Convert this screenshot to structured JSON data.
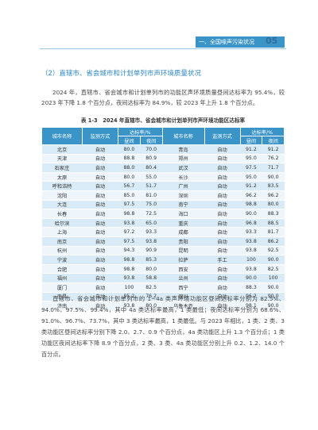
{
  "header": {
    "section": "一、全国噪声污染状况",
    "page_number": "05"
  },
  "section_title": "（2）直辖市、省会城市和计划单列市声环境质量状况",
  "paragraph1": "2024 年，直辖市、省会城市和计划单列市的功能区声环境质量昼间达标率为 95.4%，较 2023 年下降 1.8 个百分点，夜间达标率为 84.9%，较 2023 年上升 1.8 个百分点。",
  "table_caption": "表 1-3　2024 年直辖市、省会城市和计划单列市声环境功能区达标率",
  "table": {
    "col_city": "城市名称",
    "col_method": "监测方式",
    "col_rate": "达标率/%",
    "col_day": "昼间",
    "col_night": "夜间",
    "rows": [
      {
        "c1": "北京",
        "m1": "自动",
        "d1": "80.0",
        "n1": "70.0",
        "c2": "青岛",
        "m2": "自动",
        "d2": "91.2",
        "n2": "91.2"
      },
      {
        "c1": "天津",
        "m1": "自动",
        "d1": "88.8",
        "n1": "80.9",
        "c2": "郑州",
        "m2": "自动",
        "d2": "95.0",
        "n2": "76.2"
      },
      {
        "c1": "石家庄",
        "m1": "自动",
        "d1": "88.0",
        "n1": "80.4",
        "c2": "武汉",
        "m2": "自动",
        "d2": "97.5",
        "n2": "71.7"
      },
      {
        "c1": "太原",
        "m1": "自动",
        "d1": "80.0",
        "n1": "55.0",
        "c2": "长沙",
        "m2": "自动",
        "d2": "95.0",
        "n2": "90.0"
      },
      {
        "c1": "呼和浩特",
        "m1": "自动",
        "d1": "56.7",
        "n1": "51.7",
        "c2": "广州",
        "m2": "自动",
        "d2": "91.2",
        "n2": "83.5"
      },
      {
        "c1": "沈阳",
        "m1": "自动",
        "d1": "85.0",
        "n1": "81.0",
        "c2": "深圳",
        "m2": "自动",
        "d2": "96.2",
        "n2": "96.2"
      },
      {
        "c1": "大连",
        "m1": "自动",
        "d1": "97.5",
        "n1": "75.0",
        "c2": "南宁",
        "m2": "自动",
        "d2": "98.8",
        "n2": "80.0"
      },
      {
        "c1": "长春",
        "m1": "自动",
        "d1": "98.8",
        "n1": "72.5",
        "c2": "海口",
        "m2": "自动",
        "d2": "90.0",
        "n2": "88.3"
      },
      {
        "c1": "哈尔滨",
        "m1": "自动",
        "d1": "93.8",
        "n1": "65.0",
        "c2": "重庆",
        "m2": "自动",
        "d2": "96.8",
        "n2": "88.5"
      },
      {
        "c1": "上海",
        "m1": "自动",
        "d1": "97.2",
        "n1": "93.3",
        "c2": "成都",
        "m2": "自动",
        "d2": "93.3",
        "n2": "81.7"
      },
      {
        "c1": "南京",
        "m1": "自动",
        "d1": "97.5",
        "n1": "93.8",
        "c2": "贵阳",
        "m2": "自动",
        "d2": "93.8",
        "n2": "86.2"
      },
      {
        "c1": "杭州",
        "m1": "自动",
        "d1": "94.3",
        "n1": "90.9",
        "c2": "昆明",
        "m2": "自动",
        "d2": "93.8",
        "n2": "92.5"
      },
      {
        "c1": "宁波",
        "m1": "自动",
        "d1": "98.8",
        "n1": "85.3",
        "c2": "拉萨",
        "m2": "手工",
        "d2": "100",
        "n2": "90.0"
      },
      {
        "c1": "合肥",
        "m1": "自动",
        "d1": "98.8",
        "n1": "80.0",
        "c2": "西安",
        "m2": "自动",
        "d2": "93.8",
        "n2": "82.5"
      },
      {
        "c1": "福州",
        "m1": "自动",
        "d1": "93.8",
        "n1": "58.8",
        "c2": "兰州",
        "m2": "自动",
        "d2": "90.0",
        "n2": "100"
      },
      {
        "c1": "厦门",
        "m1": "自动",
        "d1": "100",
        "n1": "82.5",
        "c2": "西宁",
        "m2": "自动",
        "d2": "88.3",
        "n2": "90.0"
      },
      {
        "c1": "南昌",
        "m1": "自动",
        "d1": "95.2",
        "n1": "76.2",
        "c2": "银川",
        "m2": "自动",
        "d2": "96.2",
        "n2": "90.0"
      },
      {
        "c1": "济南",
        "m1": "自动",
        "d1": "93.8",
        "n1": "80.0",
        "c2": "乌鲁木齐",
        "m2": "自动",
        "d2": "98.1",
        "n2": "90.0"
      }
    ]
  },
  "paragraph2": "直辖市、省会城市和计划单列市的 1~4a 类声环境功能区昼间达标率分别为 82.5%、94.0%、97.5%、99.4%，其中 4a 类达标率最高，1 类最低；夜间达标率分别为 68.6%、91.0%、96.7%、73.7%，其中 3 类达标率最高，1 类最低。与 2023 年相比，1 类、2 类、3 类功能区昼间达标率分别下降 2.0、2.7、0.9 个百分点，4a 类功能区上升 1.3 个百分点；1 类功能区夜间达标率下降 8.9 个百分点，2 类、3 类、4a 类功能区分别上升 0.2、1.2、14.0 个百分点。"
}
